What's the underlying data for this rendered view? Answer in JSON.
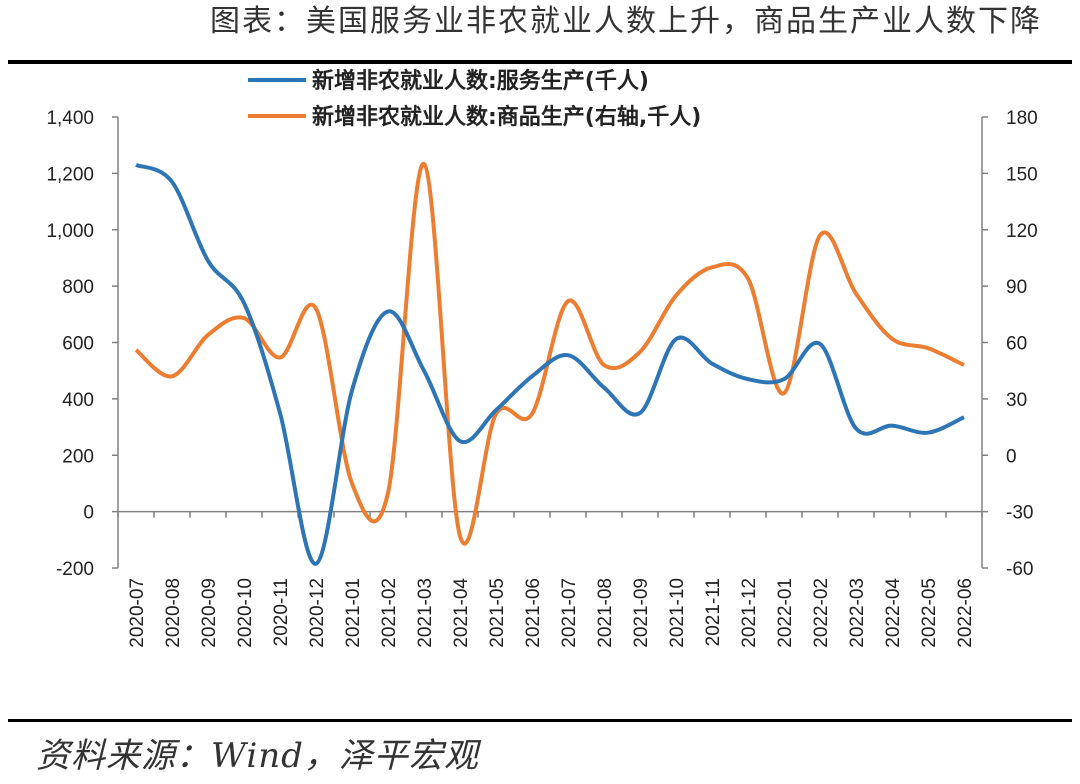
{
  "title": "图表：美国服务业非农就业人数上升，商品生产业人数下降",
  "source": "资料来源：Wind，泽平宏观",
  "colors": {
    "services": "#2E75B6",
    "goods": "#ED7D31",
    "axis": "#808080"
  },
  "chart_data": {
    "type": "line",
    "categories": [
      "2020-07",
      "2020-08",
      "2020-09",
      "2020-10",
      "2020-11",
      "2020-12",
      "2021-01",
      "2021-02",
      "2021-03",
      "2021-04",
      "2021-05",
      "2021-06",
      "2021-07",
      "2021-08",
      "2021-09",
      "2021-10",
      "2021-11",
      "2021-12",
      "2022-01",
      "2022-02",
      "2022-03",
      "2022-04",
      "2022-05",
      "2022-06"
    ],
    "y_left": {
      "min": -200,
      "max": 1400,
      "ticks": [
        -200,
        0,
        200,
        400,
        600,
        800,
        1000,
        1200,
        1400
      ],
      "tick_labels": [
        "-200",
        "0",
        "200",
        "400",
        "600",
        "800",
        "1,000",
        "1,200",
        "1,400"
      ]
    },
    "y_right": {
      "min": -60,
      "max": 180,
      "ticks": [
        -60,
        -30,
        0,
        30,
        60,
        90,
        120,
        150,
        180
      ],
      "tick_labels": [
        "-60",
        "-30",
        "0",
        "30",
        "60",
        "90",
        "120",
        "150",
        "180"
      ]
    },
    "series": [
      {
        "name": "新增非农就业人数:服务生产(千人)",
        "axis": "left",
        "values": [
          1230,
          1170,
          890,
          740,
          350,
          -185,
          430,
          710,
          500,
          250,
          360,
          480,
          555,
          440,
          350,
          612,
          525,
          470,
          470,
          595,
          295,
          305,
          280,
          335
        ]
      },
      {
        "name": "新增非农就业人数:商品生产(右轴,千人)",
        "axis": "right",
        "values": [
          56,
          42,
          64,
          73,
          52,
          78,
          -15,
          -20,
          155,
          -43,
          22,
          22,
          82,
          48,
          55,
          85,
          100,
          94,
          33,
          117,
          86,
          62,
          57,
          48
        ]
      }
    ],
    "legend_position": "top",
    "grid": false
  }
}
